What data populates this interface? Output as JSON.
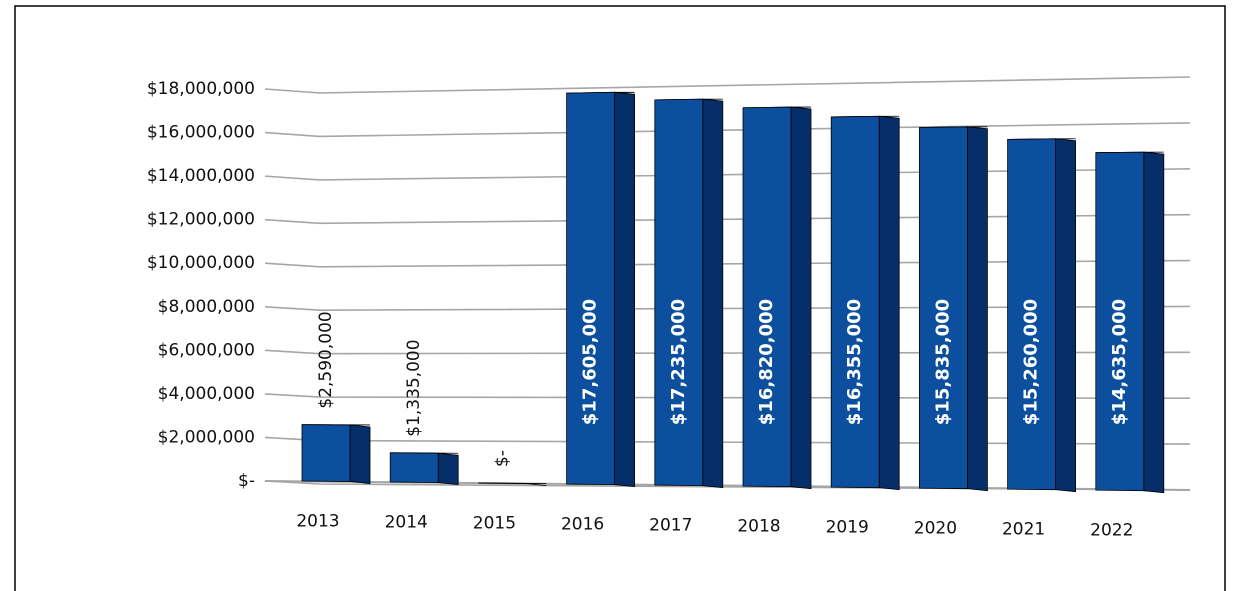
{
  "chart_data": {
    "type": "bar",
    "categories": [
      "2013",
      "2014",
      "2015",
      "2016",
      "2017",
      "2018",
      "2019",
      "2020",
      "2021",
      "2022"
    ],
    "values": [
      2590000,
      1335000,
      0,
      17605000,
      17235000,
      16820000,
      16355000,
      15835000,
      15260000,
      14635000
    ],
    "value_labels": [
      "$2,590,000",
      "$1,335,000",
      "$-",
      "$17,605,000",
      "$17,235,000",
      "$16,820,000",
      "$16,355,000",
      "$15,835,000",
      "$15,260,000",
      "$14,635,000"
    ],
    "color": "#0b4f9e",
    "ylim": [
      0,
      18000000
    ],
    "yticks": [
      {
        "value": 0,
        "label": "$-"
      },
      {
        "value": 2000000,
        "label": "$2,000,000"
      },
      {
        "value": 4000000,
        "label": "$4,000,000"
      },
      {
        "value": 6000000,
        "label": "$6,000,000"
      },
      {
        "value": 8000000,
        "label": "$8,000,000"
      },
      {
        "value": 10000000,
        "label": "$10,000,000"
      },
      {
        "value": 12000000,
        "label": "$12,000,000"
      },
      {
        "value": 14000000,
        "label": "$14,000,000"
      },
      {
        "value": 16000000,
        "label": "$16,000,000"
      },
      {
        "value": 18000000,
        "label": "$18,000,000"
      }
    ],
    "grid": true
  }
}
